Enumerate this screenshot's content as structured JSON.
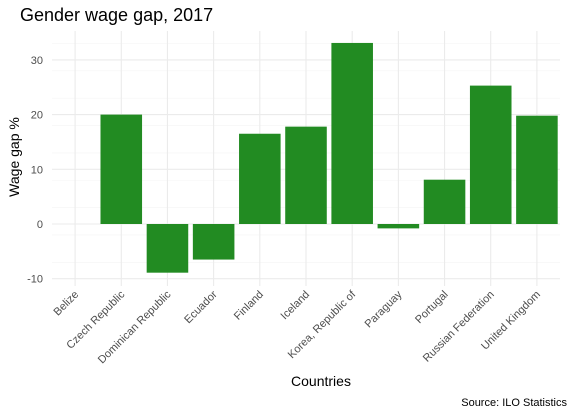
{
  "chart_data": {
    "type": "bar",
    "title": "Gender wage gap, 2017",
    "xlabel": "Countries",
    "ylabel": "Wage gap %",
    "caption": "Source: ILO Statistics",
    "categories": [
      "Belize",
      "Czech Republic",
      "Dominican Republic",
      "Ecuador",
      "Finland",
      "Iceland",
      "Korea, Republic of",
      "Paraguay",
      "Portugal",
      "Russian Federation",
      "United Kingdom"
    ],
    "values": [
      null,
      20.0,
      -8.9,
      -6.5,
      16.5,
      17.8,
      33.1,
      -0.8,
      8.1,
      25.3,
      19.8
    ],
    "ylim": [
      -12,
      35
    ],
    "yticks": [
      -10,
      0,
      10,
      20,
      30
    ],
    "grid": true,
    "bar_color": "#228B22"
  }
}
